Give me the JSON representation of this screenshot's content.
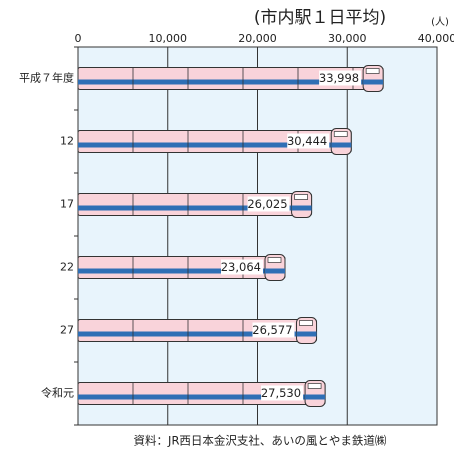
{
  "chart_data": {
    "type": "bar",
    "orientation": "horizontal",
    "subtitle": "(市内駅１日平均)",
    "unit": "(人)",
    "categories": [
      "平成７年度",
      "12",
      "17",
      "22",
      "27",
      "令和元"
    ],
    "values": [
      33998,
      30444,
      26025,
      23064,
      26577,
      27530
    ],
    "value_labels": [
      "33,998",
      "30,444",
      "26,025",
      "23,064",
      "26,577",
      "27,530"
    ],
    "color": "#f9d3da",
    "stripe_color": "#2f6fb5",
    "xlim": [
      0,
      40000
    ],
    "xticks": [
      0,
      {
        "value": 10000,
        "label": "10,000"
      },
      {
        "value": 20000,
        "label": "20,000"
      },
      {
        "value": 30000,
        "label": "30,000"
      },
      {
        "value": 40000,
        "label": "40,000"
      }
    ],
    "grid": true,
    "source": "資料：JR西日本金沢支社、あいの風とやま鉄道㈱"
  }
}
